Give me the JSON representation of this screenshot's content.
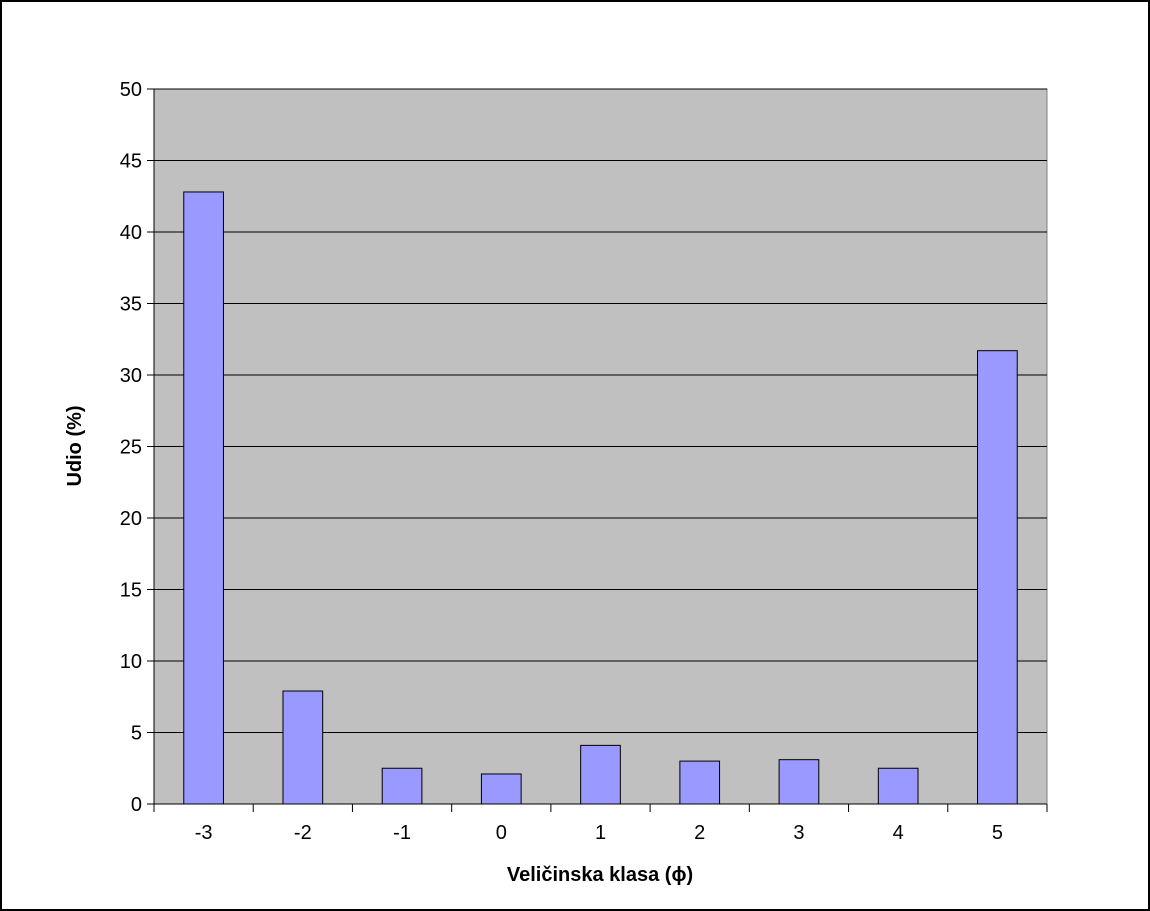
{
  "chart_data": {
    "type": "bar",
    "title": "",
    "xlabel": "Veličinska klasa (ϕ)",
    "ylabel": "Udio (%)",
    "categories": [
      "-3",
      "-2",
      "-1",
      "0",
      "1",
      "2",
      "3",
      "4",
      "5"
    ],
    "values": [
      42.8,
      7.9,
      2.5,
      2.1,
      4.1,
      3.0,
      3.1,
      2.5,
      31.7
    ],
    "ylim": [
      0,
      50
    ],
    "yticks": [
      "0",
      "5",
      "10",
      "15",
      "20",
      "25",
      "30",
      "35",
      "40",
      "45",
      "50"
    ],
    "grid": true,
    "legend": "none",
    "colors": {
      "bar_fill": "#9999FF",
      "plot_background": "#C0C0C0",
      "gridline": "#000000",
      "frame": "#000000"
    }
  }
}
